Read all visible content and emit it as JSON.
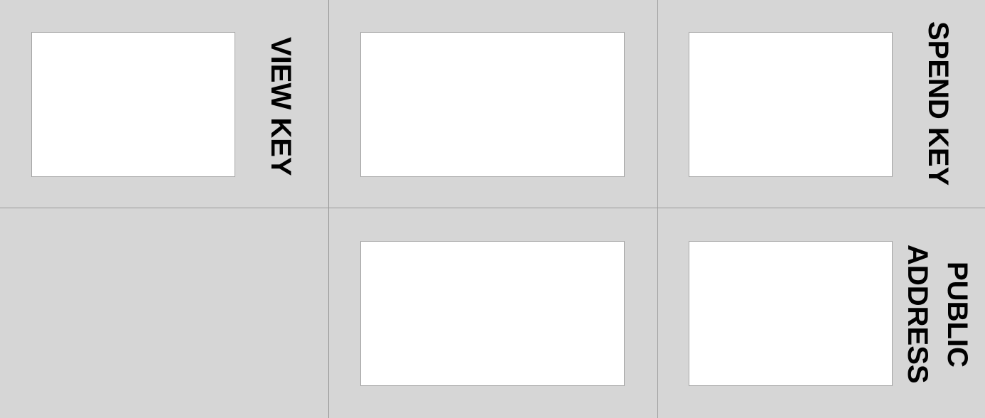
{
  "cells": {
    "top_left": {
      "label": "VIEW KEY"
    },
    "top_right": {
      "label": "SPEND KEY"
    },
    "bottom_right": {
      "label_line1": "PUBLIC",
      "label_line2": "ADDRESS"
    }
  },
  "colors": {
    "background": "#d6d6d6",
    "box_fill": "#ffffff",
    "grid_line": "#9c9c9c",
    "text": "#000000"
  }
}
